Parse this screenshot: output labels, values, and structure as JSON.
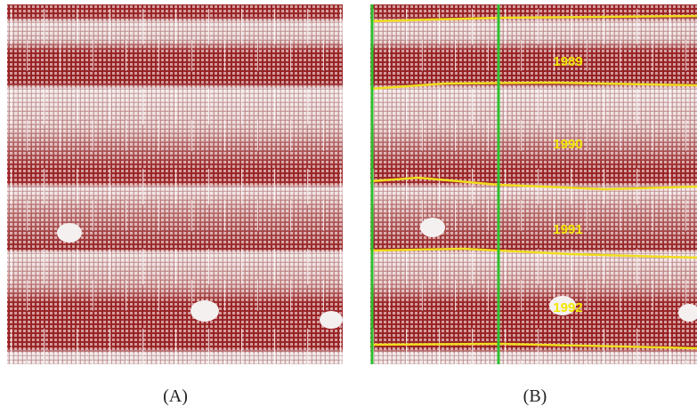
{
  "panels": [
    {
      "label": "(A)"
    },
    {
      "label": "(B)",
      "rings": [
        "1989",
        "1990",
        "1991",
        "1992"
      ]
    }
  ]
}
